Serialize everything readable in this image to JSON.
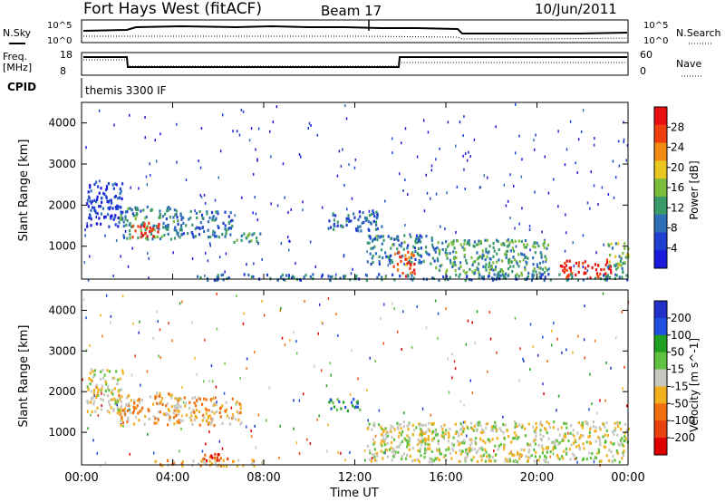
{
  "header": {
    "station": "Fort Hays West (fitACF)",
    "beam": "Beam 17",
    "date": "10/Jun/2011"
  },
  "noise_panel": {
    "left_label": "N.Sky",
    "right_label": "N.Search",
    "tick_labels": [
      "10^5",
      "10^0"
    ]
  },
  "freq_panel": {
    "left_label_line1": "Freq.",
    "left_label_line2": "[MHz]",
    "right_label": "Nave",
    "left_ticks": [
      "18",
      "8"
    ],
    "right_ticks": [
      "60",
      "0"
    ]
  },
  "cpid": {
    "label": "CPID",
    "value": "themis 3300 IF"
  },
  "colors": {
    "power_scale": [
      "#1a1adc",
      "#1f3fd0",
      "#2f6fb8",
      "#3a9a6a",
      "#7dbb3a",
      "#e8c820",
      "#f08a10",
      "#f04010",
      "#e81010"
    ],
    "velocity_scale": [
      "#2030c8",
      "#2050e0",
      "#20a020",
      "#60c040",
      "#c8c8c0",
      "#f0b020",
      "#f07010",
      "#e84010",
      "#e00000"
    ]
  },
  "chart_data": [
    {
      "type": "heatmap",
      "panel": "power",
      "xlabel": "Time UT",
      "ylabel": "Slant Range [km]",
      "x_ticks": [
        "00:00",
        "04:00",
        "08:00",
        "12:00",
        "16:00",
        "20:00",
        "00:00"
      ],
      "y_ticks": [
        1000,
        2000,
        3000,
        4000
      ],
      "ylim": [
        200,
        4500
      ],
      "colorbar": {
        "label": "Power [dB]",
        "ticks": [
          4,
          8,
          12,
          16,
          20,
          24,
          28
        ]
      },
      "regions": [
        {
          "t0": 0.2,
          "t1": 1.8,
          "r0": 1500,
          "r1": 2600,
          "level": 0.15
        },
        {
          "t0": 1.6,
          "t1": 4.2,
          "r0": 1200,
          "r1": 2000,
          "level": 0.35
        },
        {
          "t0": 2.2,
          "t1": 3.6,
          "r0": 1250,
          "r1": 1600,
          "level": 0.9
        },
        {
          "t0": 4.0,
          "t1": 6.6,
          "r0": 1250,
          "r1": 1900,
          "level": 0.3
        },
        {
          "t0": 6.6,
          "t1": 7.9,
          "r0": 1100,
          "r1": 1350,
          "level": 0.35
        },
        {
          "t0": 10.8,
          "t1": 13.2,
          "r0": 1400,
          "r1": 1900,
          "level": 0.25
        },
        {
          "t0": 12.5,
          "t1": 15.5,
          "r0": 600,
          "r1": 1300,
          "level": 0.3
        },
        {
          "t0": 13.6,
          "t1": 14.6,
          "r0": 300,
          "r1": 900,
          "level": 0.8
        },
        {
          "t0": 15.5,
          "t1": 20.5,
          "r0": 300,
          "r1": 1200,
          "level": 0.4
        },
        {
          "t0": 21.0,
          "t1": 23.3,
          "r0": 250,
          "r1": 700,
          "level": 0.9
        },
        {
          "t0": 23.0,
          "t1": 24.0,
          "r0": 400,
          "r1": 1100,
          "level": 0.45
        },
        {
          "t0": 5.0,
          "t1": 24.0,
          "r0": 200,
          "r1": 350,
          "level": 0.3
        }
      ]
    },
    {
      "type": "heatmap",
      "panel": "velocity",
      "xlabel": "Time UT",
      "ylabel": "Slant Range [km]",
      "x_ticks": [
        "00:00",
        "04:00",
        "08:00",
        "12:00",
        "16:00",
        "20:00",
        "00:00"
      ],
      "y_ticks": [
        1000,
        2000,
        3000,
        4000
      ],
      "ylim": [
        200,
        4500
      ],
      "colorbar": {
        "label": "Velocity [m s^-1]",
        "ticks": [
          200,
          100,
          50,
          15,
          -15,
          -50,
          -100,
          -200
        ]
      },
      "regions": [
        {
          "t0": 0.2,
          "t1": 1.8,
          "r0": 1500,
          "r1": 2600,
          "level": 0.5
        },
        {
          "t0": 1.6,
          "t1": 4.2,
          "r0": 1200,
          "r1": 2000,
          "level": 0.62
        },
        {
          "t0": 4.0,
          "t1": 7.0,
          "r0": 1200,
          "r1": 1900,
          "level": 0.6
        },
        {
          "t0": 5.0,
          "t1": 6.5,
          "r0": 300,
          "r1": 500,
          "level": 0.8
        },
        {
          "t0": 10.8,
          "t1": 12.2,
          "r0": 1550,
          "r1": 1850,
          "level": 0.25
        },
        {
          "t0": 12.5,
          "t1": 24.0,
          "r0": 300,
          "r1": 1300,
          "level": 0.5
        },
        {
          "t0": 3.0,
          "t1": 8.0,
          "r0": 200,
          "r1": 350,
          "level": 0.6
        }
      ]
    }
  ]
}
